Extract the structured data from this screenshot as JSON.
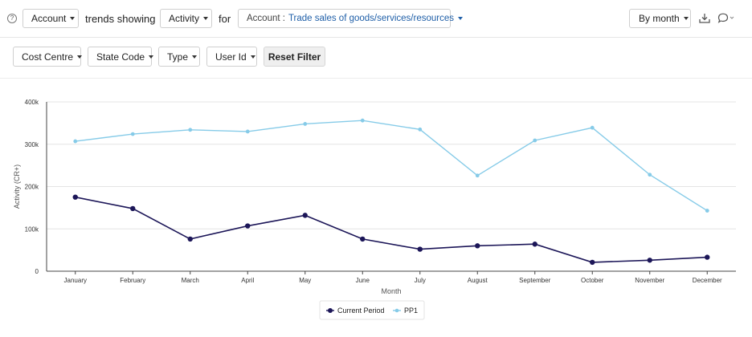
{
  "header": {
    "help_icon": "?",
    "account_dropdown": "Account",
    "trends_text": "trends showing",
    "activity_dropdown": "Activity",
    "for_text": "for",
    "account_filter_label": "Account :",
    "account_filter_value": "Trade sales of goods/services/resources",
    "period_dropdown": "By month",
    "download_icon": "download-icon",
    "comment_icon": "comment-icon"
  },
  "filters": {
    "cost_centre": "Cost Centre",
    "state_code": "State Code",
    "type": "Type",
    "user_id": "User Id",
    "reset": "Reset Filter"
  },
  "colors": {
    "current_period": "#1c1658",
    "pp1": "#86cbe8"
  },
  "chart_data": {
    "type": "line",
    "categories": [
      "January",
      "February",
      "March",
      "April",
      "May",
      "June",
      "July",
      "August",
      "September",
      "October",
      "November",
      "December"
    ],
    "series": [
      {
        "name": "Current Period",
        "values": [
          175000,
          148000,
          76000,
          107000,
          132000,
          76000,
          52000,
          60000,
          64000,
          21000,
          26000,
          33000
        ]
      },
      {
        "name": "PP1",
        "values": [
          307000,
          324000,
          334000,
          330000,
          348000,
          356000,
          335000,
          226000,
          309000,
          339000,
          228000,
          143000
        ]
      }
    ],
    "ylabel": "Activity (CR+)",
    "xlabel": "Month",
    "ylim": [
      0,
      400000
    ],
    "yticks": [
      "0",
      "100k",
      "200k",
      "300k",
      "400k"
    ],
    "grid": true,
    "legend": "bottom-center"
  }
}
